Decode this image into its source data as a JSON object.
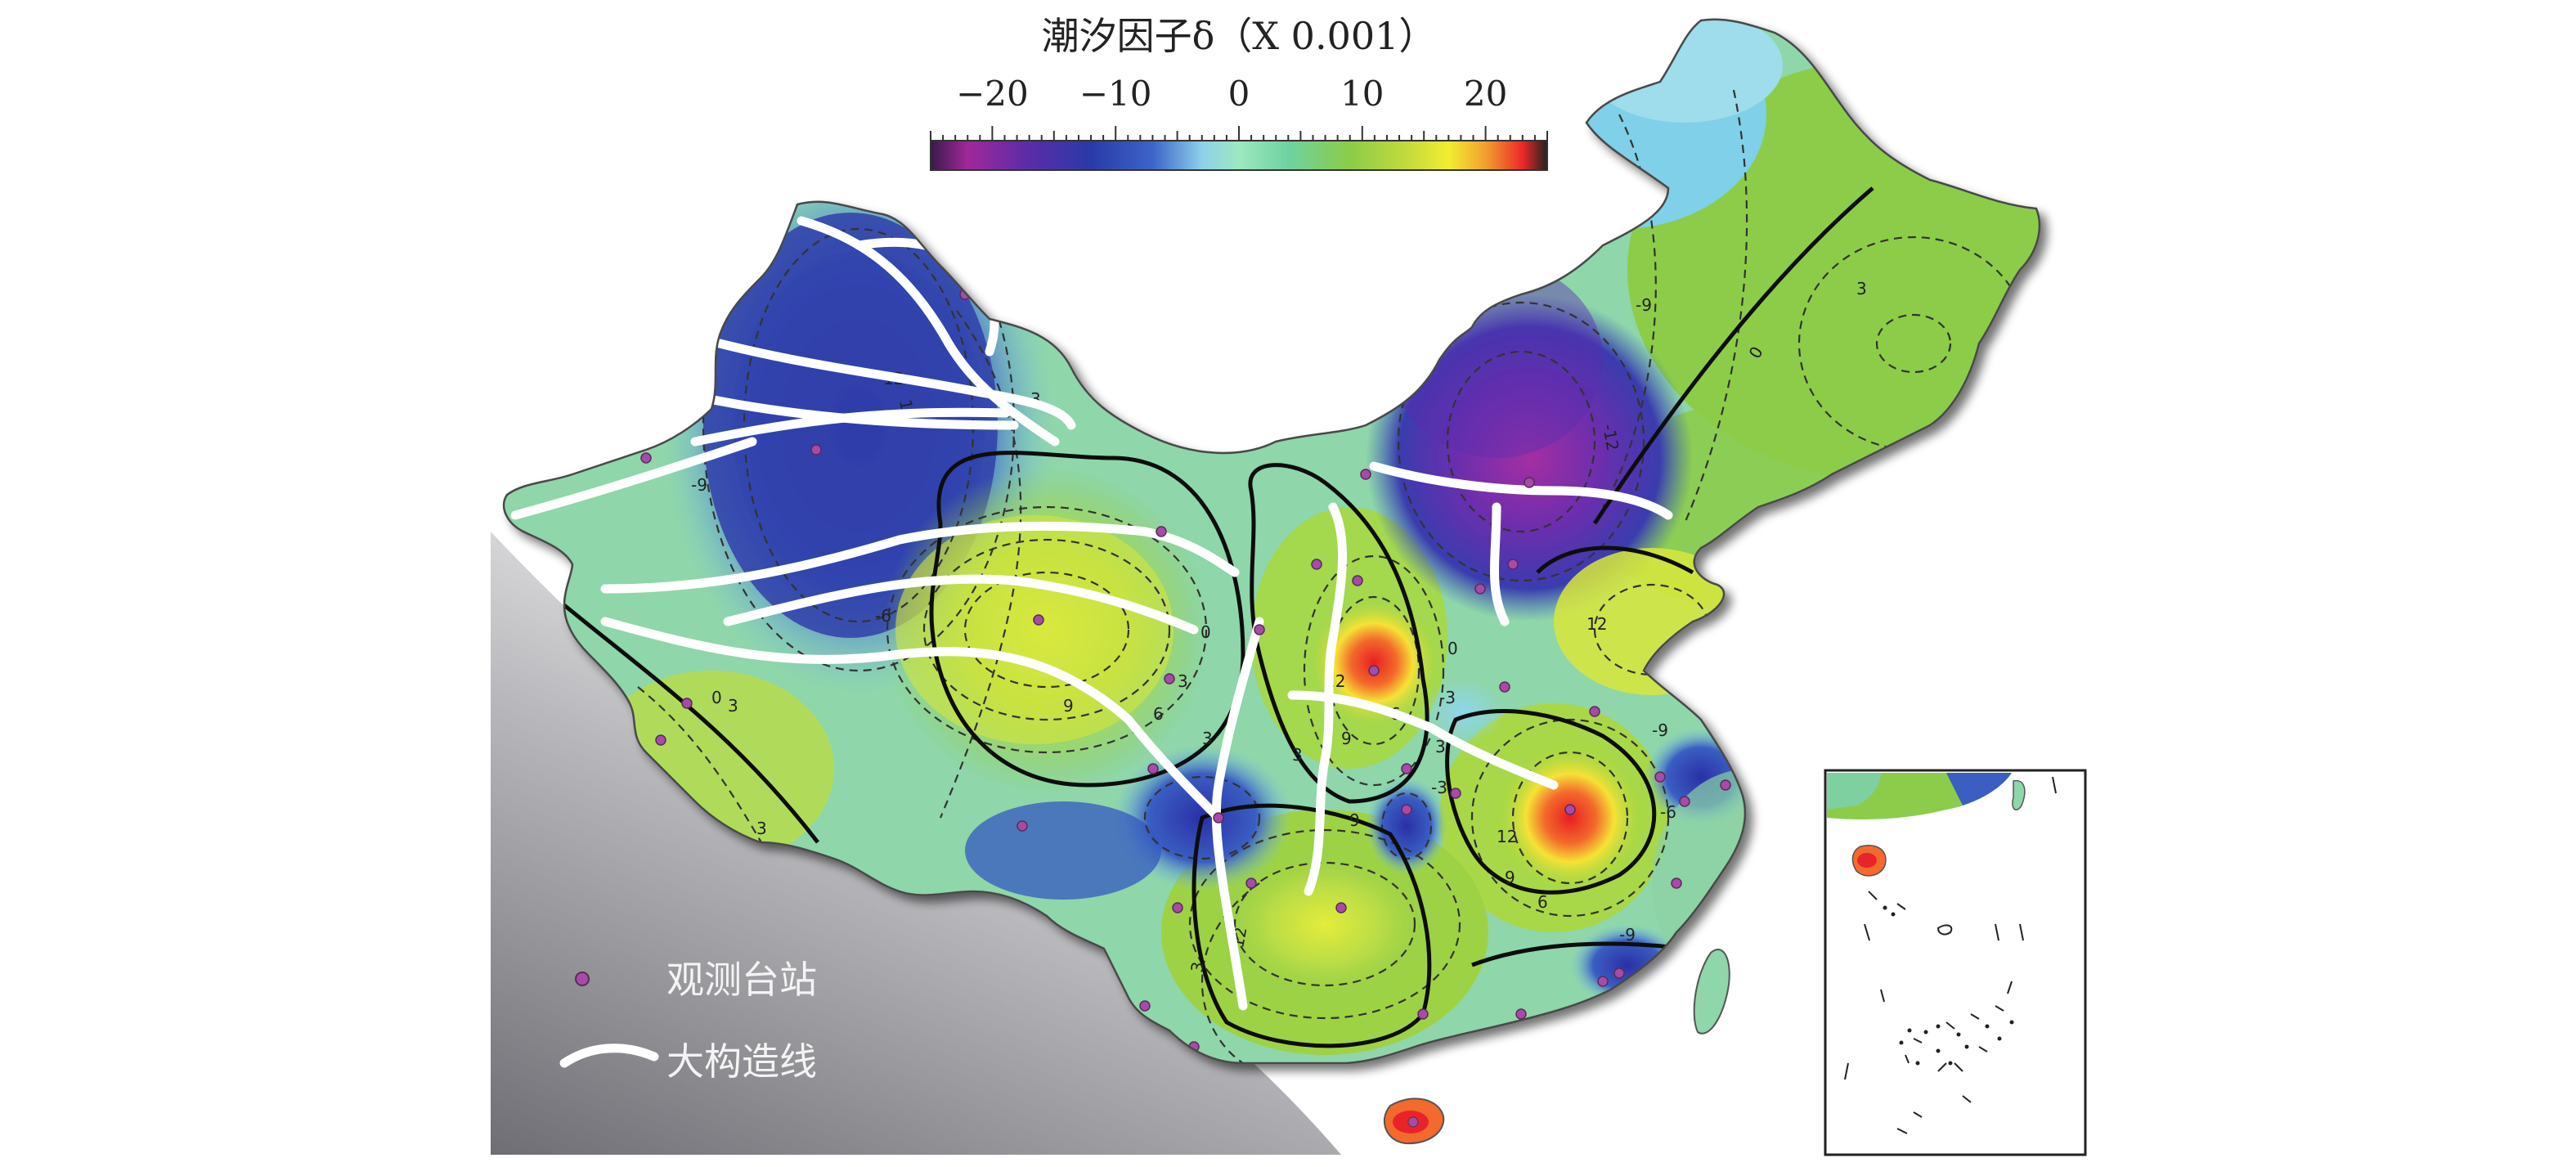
{
  "colorbar": {
    "title": "潮汐因子δ（X 0.001）",
    "min": -25,
    "max": 25,
    "ticks": [
      {
        "value": -20,
        "label": "−20"
      },
      {
        "value": -10,
        "label": "−10"
      },
      {
        "value": 0,
        "label": "0"
      },
      {
        "value": 10,
        "label": "10"
      },
      {
        "value": 20,
        "label": "20"
      }
    ],
    "stops": [
      {
        "value": -25,
        "color": "#3a1a4a"
      },
      {
        "value": -22,
        "color": "#a0289a"
      },
      {
        "value": -17,
        "color": "#5a2ca8"
      },
      {
        "value": -12,
        "color": "#2a3aa8"
      },
      {
        "value": -7,
        "color": "#3c64c8"
      },
      {
        "value": -3,
        "color": "#8ed0ea"
      },
      {
        "value": 0,
        "color": "#9ee8c0"
      },
      {
        "value": 4,
        "color": "#6ed2a0"
      },
      {
        "value": 9,
        "color": "#8ccc48"
      },
      {
        "value": 14,
        "color": "#c8dc3c"
      },
      {
        "value": 17,
        "color": "#f2ee30"
      },
      {
        "value": 20,
        "color": "#f2a030"
      },
      {
        "value": 23,
        "color": "#ec2828"
      },
      {
        "value": 25,
        "color": "#222222"
      }
    ]
  },
  "contour_labels": [
    "-12",
    "-9",
    "-6",
    "-3",
    "0",
    "3",
    "6",
    "9",
    "12"
  ],
  "legend": {
    "station_label": "观测台站",
    "fault_label": "大构造线",
    "station_color": "#a64ca6",
    "fault_color": "#ffffff"
  },
  "inset": {
    "name": "south-china-sea-inset"
  }
}
